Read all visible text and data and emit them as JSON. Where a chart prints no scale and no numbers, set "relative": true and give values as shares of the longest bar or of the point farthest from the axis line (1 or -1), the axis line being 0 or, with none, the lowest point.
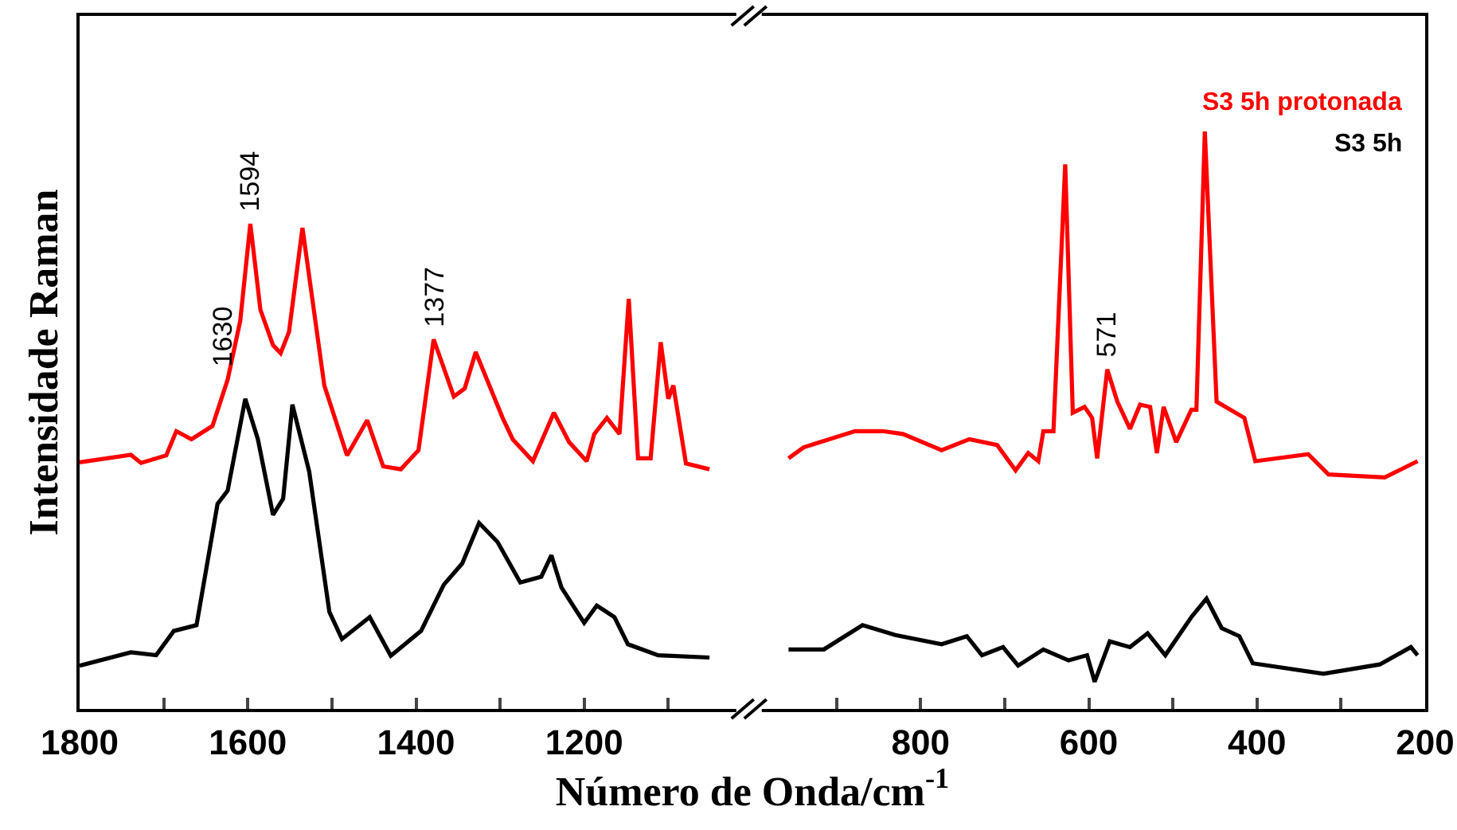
{
  "chart_data": {
    "type": "line",
    "relative": true,
    "xlabel": "Número de Onda/cm$^{-1}$",
    "ylabel": "Intensidade Raman",
    "x": [
      1800,
      1739,
      1727,
      1697,
      1685,
      1667,
      1642,
      1624,
      1609,
      1597,
      1585,
      1570,
      1561,
      1551,
      1535,
      1509,
      1482,
      1458,
      1439,
      1418,
      1397,
      1379,
      1355,
      1342,
      1329,
      1297,
      1285,
      1261,
      1236,
      1218,
      1197,
      1188,
      1173,
      1158,
      1147,
      1136,
      1121,
      1109,
      1100,
      1094,
      1079,
      1051,
      1004,
      957,
      939,
      878,
      845,
      821,
      775,
      742,
      709,
      687,
      672,
      660,
      654,
      642,
      628,
      619,
      605,
      596,
      590,
      578,
      566,
      551,
      539,
      527,
      519,
      511,
      496,
      478,
      472,
      462,
      448,
      415,
      402,
      339,
      315,
      248,
      209
    ],
    "series": [
      {
        "name": "S3 5h protonada",
        "color": "#ff0000",
        "values": [
          0.427,
          0.44,
          0.426,
          0.439,
          0.481,
          0.467,
          0.49,
          0.57,
          0.672,
          0.84,
          0.691,
          0.63,
          0.616,
          0.653,
          0.833,
          0.56,
          0.439,
          0.5,
          0.42,
          0.415,
          0.448,
          0.64,
          0.541,
          0.555,
          0.618,
          0.504,
          0.467,
          0.429,
          0.513,
          0.462,
          0.429,
          0.476,
          0.504,
          0.476,
          0.71,
          0.434,
          0.434,
          0.635,
          0.537,
          0.56,
          0.425,
          0.415,
          null,
          0.434,
          0.453,
          0.481,
          0.481,
          0.476,
          0.448,
          0.467,
          0.457,
          0.413,
          0.443,
          0.429,
          0.481,
          0.481,
          0.943,
          0.513,
          0.523,
          0.504,
          0.434,
          0.588,
          0.532,
          0.485,
          0.527,
          0.523,
          0.443,
          0.523,
          0.462,
          0.518,
          0.518,
          1,
          0.532,
          0.504,
          0.429,
          0.441,
          0.406,
          0.401,
          0.429
        ]
      },
      {
        "name": "S3 5h",
        "color": "#000000",
        "x": [
          1800,
          1739,
          1709,
          1688,
          1661,
          1636,
          1624,
          1603,
          1588,
          1570,
          1558,
          1547,
          1527,
          1503,
          1488,
          1455,
          1430,
          1394,
          1367,
          1345,
          1325,
          1303,
          1276,
          1251,
          1239,
          1227,
          1200,
          1185,
          1164,
          1148,
          1112,
          1051,
          1004,
          957,
          915,
          869,
          830,
          775,
          745,
          727,
          702,
          684,
          654,
          624,
          602,
          593,
          575,
          551,
          530,
          509,
          478,
          460,
          442,
          421,
          405,
          321,
          254,
          217,
          209
        ],
        "values": [
          0.075,
          0.098,
          0.093,
          0.135,
          0.145,
          0.355,
          0.378,
          0.537,
          0.467,
          0.336,
          0.364,
          0.527,
          0.411,
          0.168,
          0.121,
          0.159,
          0.092,
          0.135,
          0.215,
          0.252,
          0.322,
          0.289,
          0.219,
          0.229,
          0.266,
          0.21,
          0.149,
          0.179,
          0.159,
          0.112,
          0.093,
          0.089,
          null,
          0.103,
          0.103,
          0.145,
          0.128,
          0.112,
          0.126,
          0.093,
          0.107,
          0.075,
          0.103,
          0.084,
          0.093,
          0.047,
          0.117,
          0.107,
          0.131,
          0.093,
          0.159,
          0.191,
          0.14,
          0.126,
          0.079,
          0.061,
          0.077,
          0.107,
          0.093
        ]
      }
    ],
    "xlim": [
      1800,
      200
    ],
    "xticks": [
      1800,
      {
        "value": 1700,
        "label": null
      },
      1600,
      {
        "value": 1500,
        "label": null
      },
      1400,
      {
        "value": 1300,
        "label": null
      },
      1200,
      {
        "value": 1100,
        "label": null
      },
      {
        "value": 900,
        "label": null
      },
      800,
      {
        "value": 700,
        "label": null
      },
      600,
      {
        "value": 500,
        "label": null
      },
      400,
      {
        "value": 300,
        "label": null
      },
      200
    ],
    "annotations": [
      {
        "text": "1630",
        "x": 1630,
        "y": 0.57
      },
      {
        "text": "1594",
        "x": 1597,
        "y": 0.84
      },
      {
        "text": "1377",
        "x": 1379,
        "y": 0.64
      },
      {
        "text": "571",
        "x": 578,
        "y": 0.588
      }
    ],
    "line_style": "solid",
    "marker": "none",
    "grid": false
  }
}
